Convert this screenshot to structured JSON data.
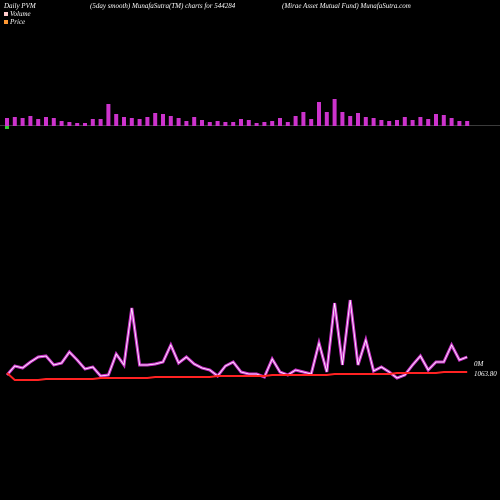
{
  "chart_data": {
    "type": "line",
    "title": "Daily PVM",
    "subtitle": "(5day smooth) MunafaSutra(TM) charts for 544284",
    "source": "(Mirae   Asset Mutual Fund) MunafaSutra.com",
    "volume_label": "0M",
    "price_label": "1063.80",
    "bar_color": "#cc33cc",
    "series": [
      {
        "name": "Volume",
        "color": "#cc33cc",
        "values": [
          5,
          14,
          12,
          18,
          23,
          24,
          15,
          17,
          28,
          20,
          11,
          13,
          4,
          5,
          26,
          15,
          72,
          15,
          15,
          16,
          18,
          35,
          17,
          23,
          16,
          12,
          10,
          4,
          14,
          18,
          8,
          6,
          6,
          3,
          21,
          8,
          5,
          10,
          8,
          6,
          37,
          8,
          77,
          15,
          80,
          15,
          40,
          9,
          13,
          8,
          2,
          5,
          15,
          24,
          10,
          18,
          18,
          35,
          20,
          23
        ]
      },
      {
        "name": "Price",
        "color": "#ff2222",
        "values": [
          7,
          0,
          0,
          0,
          0,
          1,
          1,
          1,
          1,
          1,
          1,
          1,
          2,
          2,
          2,
          2,
          2,
          2,
          2,
          3,
          3,
          3,
          3,
          3,
          3,
          3,
          3,
          4,
          4,
          4,
          4,
          4,
          4,
          4,
          5,
          5,
          5,
          5,
          5,
          5,
          5,
          5,
          6,
          6,
          6,
          6,
          6,
          6,
          6,
          6,
          7,
          7,
          7,
          7,
          7,
          7,
          8,
          8,
          8,
          8
        ]
      }
    ],
    "bars": [
      8,
      9,
      8,
      10,
      7,
      9,
      8,
      5,
      4,
      3,
      3,
      7,
      7,
      22,
      12,
      9,
      8,
      7,
      9,
      13,
      12,
      10,
      8,
      5,
      9,
      6,
      4,
      5,
      4,
      4,
      7,
      6,
      3,
      4,
      5,
      8,
      4,
      10,
      14,
      7,
      24,
      14,
      27,
      14,
      10,
      13,
      9,
      8,
      6,
      5,
      6,
      9,
      6,
      9,
      7,
      12,
      11,
      8,
      5,
      5
    ]
  }
}
